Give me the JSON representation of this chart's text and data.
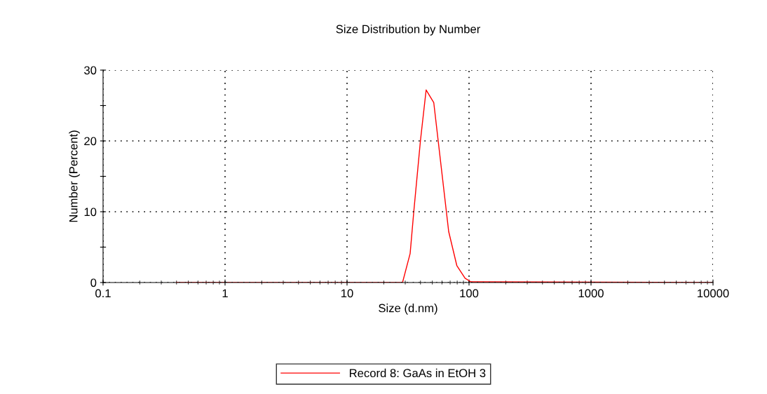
{
  "chart_data": {
    "type": "line",
    "title": "Size Distribution by Number",
    "xlabel": "Size (d.nm)",
    "ylabel": "Number (Percent)",
    "series": [
      {
        "name": "Record 8: GaAs in EtOH 3",
        "color": "#ff0000",
        "x": [
          0.4,
          28.5,
          32.9,
          35.2,
          40,
          44.5,
          51.4,
          68.1,
          79.4,
          92.8,
          103.5,
          10000
        ],
        "values": [
          0,
          0,
          4.1,
          9.9,
          20.1,
          27.2,
          25.4,
          7.2,
          2.4,
          0.6,
          0.1,
          0
        ]
      }
    ],
    "log": "x",
    "xlim": [
      0.1,
      10000
    ],
    "xticks": [
      0.1,
      1,
      10,
      100,
      1000,
      10000
    ],
    "ylim": [
      0,
      30
    ],
    "yticks": [
      0,
      {
        "value": 5,
        "label": null
      },
      10,
      {
        "value": 15,
        "label": null
      },
      20,
      {
        "value": 25,
        "label": null
      },
      30
    ],
    "grid": true,
    "legend": "bottom",
    "marker": "none",
    "line_style": "solid"
  }
}
